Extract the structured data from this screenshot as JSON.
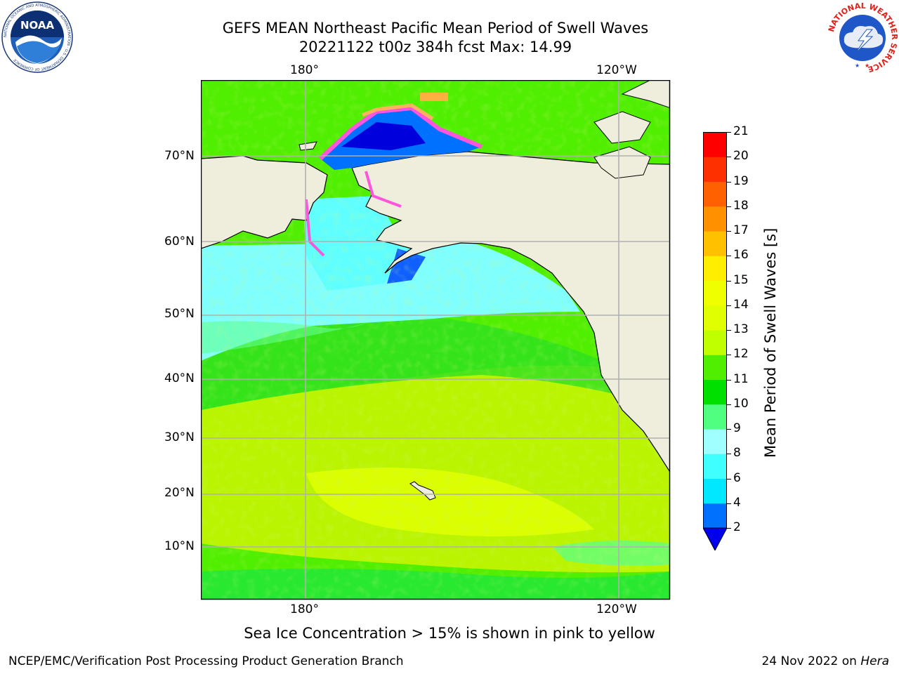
{
  "header": {
    "title_line1": "GEFS MEAN Northeast Pacific Mean Period of Swell Waves",
    "title_line2": "20221122 t00z 384h fcst   Max: 14.99"
  },
  "logos": {
    "noaa_text": "NOAA",
    "noaa_ring_text": "NATIONAL OCEANIC AND ATMOSPHERIC ADMINISTRATION · U.S. DEPARTMENT OF COMMERCE",
    "nws_ring_text": "NATIONAL WEATHER SERVICE"
  },
  "map": {
    "lon_labels_top": [
      "180°",
      "120°W"
    ],
    "lon_labels_bottom": [
      "180°",
      "120°W"
    ],
    "lat_labels": [
      "70°N",
      "60°N",
      "50°N",
      "40°N",
      "30°N",
      "20°N",
      "10°N"
    ],
    "colors": {
      "land": "#efeedc",
      "grid": "#b0b0b0",
      "coast": "#000000",
      "ice": "#ff55dd"
    }
  },
  "colorbar": {
    "label": "Mean Period of Swell Waves [s]",
    "ticks": [
      "2",
      "4",
      "6",
      "8",
      "9",
      "10",
      "11",
      "12",
      "13",
      "14",
      "15",
      "16",
      "17",
      "18",
      "19",
      "20",
      "21"
    ],
    "colors": [
      "#0070ff",
      "#00e8ff",
      "#40ffff",
      "#a0ffff",
      "#50ff80",
      "#00e000",
      "#50ee00",
      "#c0ff00",
      "#e0ff00",
      "#f0ff00",
      "#ffee00",
      "#ffc000",
      "#ff9000",
      "#ff6000",
      "#ff3000",
      "#ff0000"
    ],
    "extend_color": "#0000ee"
  },
  "note": "Sea Ice Concentration > 15% is shown in pink to yellow",
  "footer": {
    "left": "NCEP/EMC/Verification Post Processing Product Generation Branch",
    "right_prefix": "24 Nov 2022 on ",
    "right_machine": "Hera"
  }
}
